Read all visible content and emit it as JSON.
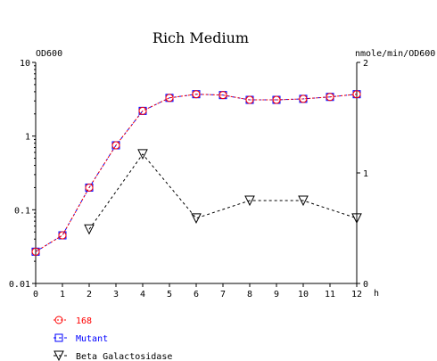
{
  "chart_data": {
    "type": "line",
    "title": "Rich Medium",
    "xlabel": "h",
    "y_left_label": "OD600",
    "y_right_label": "nmole/min/OD600",
    "x_ticks": [
      "0",
      "1",
      "2",
      "3",
      "4",
      "5",
      "6",
      "7",
      "8",
      "9",
      "10",
      "11",
      "12"
    ],
    "xlim": [
      0,
      12
    ],
    "y_left_scale": "log",
    "y_left_lim": [
      0.01,
      10
    ],
    "y_left_ticks": [
      "0.01",
      "0.1",
      "1",
      "10"
    ],
    "y_right_scale": "linear",
    "y_right_lim": [
      0,
      2
    ],
    "y_right_ticks": [
      "0",
      "1",
      "2"
    ],
    "grid": false,
    "legend_position": "bottom-left",
    "series": [
      {
        "name": "168",
        "axis": "left",
        "color": "#ff0000",
        "marker": "circle",
        "line_style": "dotted",
        "x": [
          0,
          1,
          2,
          3,
          4,
          5,
          6,
          7,
          8,
          9,
          10,
          11,
          12
        ],
        "y": [
          0.027,
          0.045,
          0.2,
          0.75,
          2.2,
          3.3,
          3.7,
          3.6,
          3.1,
          3.1,
          3.2,
          3.4,
          3.7
        ]
      },
      {
        "name": "Mutant",
        "axis": "left",
        "color": "#0000ff",
        "marker": "square",
        "line_style": "dashed",
        "x": [
          0,
          1,
          2,
          3,
          4,
          5,
          6,
          7,
          8,
          9,
          10,
          11,
          12
        ],
        "y": [
          0.027,
          0.045,
          0.2,
          0.75,
          2.2,
          3.3,
          3.7,
          3.6,
          3.1,
          3.1,
          3.2,
          3.4,
          3.7
        ]
      },
      {
        "name": "Beta Galactosidase",
        "axis": "right",
        "color": "#000000",
        "marker": "triangle-down",
        "line_style": "dashed",
        "x": [
          2,
          4,
          6,
          8,
          10,
          12
        ],
        "y": [
          0.49,
          1.17,
          0.59,
          0.75,
          0.75,
          0.59
        ]
      }
    ]
  }
}
